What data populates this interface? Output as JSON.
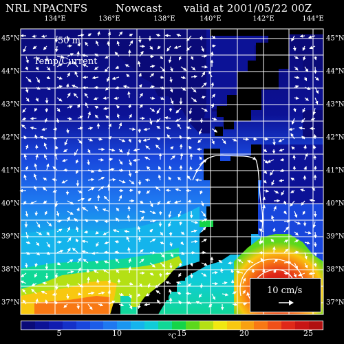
{
  "header": {
    "model": "NRL NPACNFS",
    "product": "Nowcast",
    "valid": "valid at 2001/05/22 00Z"
  },
  "overlay": {
    "depth": "50 m",
    "field": "Temp/Current"
  },
  "scale": {
    "label": "10 cm/s"
  },
  "axes": {
    "lon_labels": [
      "134°E",
      "136°E",
      "138°E",
      "140°E",
      "142°E",
      "144°E"
    ],
    "lat_labels": [
      "45°N",
      "44°N",
      "43°N",
      "42°N",
      "41°N",
      "40°N",
      "39°N",
      "38°N",
      "37°N"
    ],
    "lon_range": [
      133,
      144.5
    ],
    "lat_range": [
      36.7,
      45.3
    ]
  },
  "colorbar": {
    "ticks": [
      "5",
      "10",
      "15",
      "20",
      "25"
    ],
    "unit": "°C",
    "colors": [
      "#0a0a78",
      "#0c1296",
      "#101cb0",
      "#1430c8",
      "#1846dc",
      "#1c5ce8",
      "#1e78f0",
      "#1a96f0",
      "#14b4ec",
      "#10ccd8",
      "#10d896",
      "#14d448",
      "#5cd81c",
      "#b4e014",
      "#f0e810",
      "#f8c810",
      "#f8a010",
      "#f87814",
      "#f05018",
      "#e02818",
      "#c81414",
      "#b01010"
    ]
  },
  "colors": {
    "land": "#000000",
    "grid": "#ffffff",
    "vectors": "#ffffff"
  }
}
